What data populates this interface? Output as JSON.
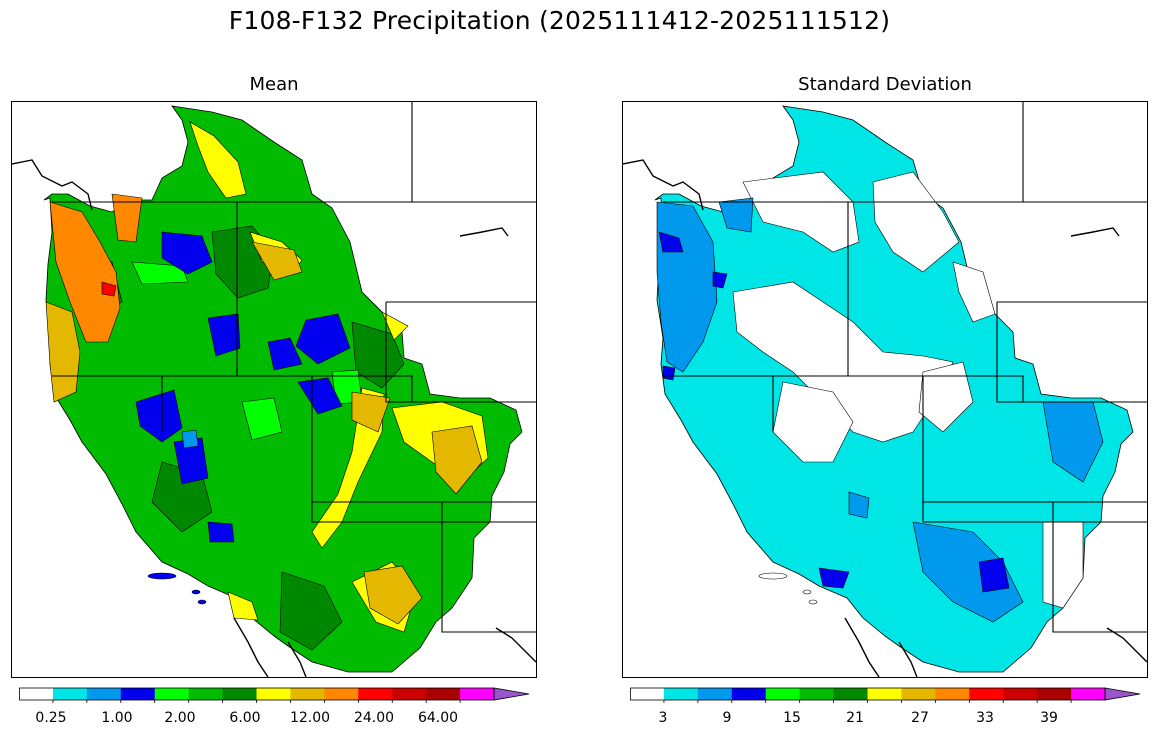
{
  "figure": {
    "title": "F108-F132 Precipitation (2025111412-2025111512)"
  },
  "panels": [
    {
      "title": "Mean",
      "colorbar": {
        "colors": [
          "#ffffff",
          "#00e5e5",
          "#0099ee",
          "#0000ee",
          "#00ff00",
          "#00bb00",
          "#008800",
          "#ffff00",
          "#e5b800",
          "#ff8800",
          "#ff0000",
          "#cc0000",
          "#aa0000",
          "#ff00ff",
          "#9955cc"
        ],
        "labels": [
          "0.25",
          "1.00",
          "2.00",
          "6.00",
          "12.00",
          "24.00",
          "64.00"
        ],
        "extend": "max"
      }
    },
    {
      "title": "Standard Deviation",
      "colorbar": {
        "colors": [
          "#ffffff",
          "#00e5e5",
          "#0099ee",
          "#0000ee",
          "#00ff00",
          "#00bb00",
          "#008800",
          "#ffff00",
          "#e5b800",
          "#ff8800",
          "#ff0000",
          "#cc0000",
          "#aa0000",
          "#ff00ff",
          "#9955cc"
        ],
        "labels": [
          "3",
          "9",
          "15",
          "21",
          "27",
          "33",
          "39"
        ],
        "extend": "max"
      }
    }
  ]
}
